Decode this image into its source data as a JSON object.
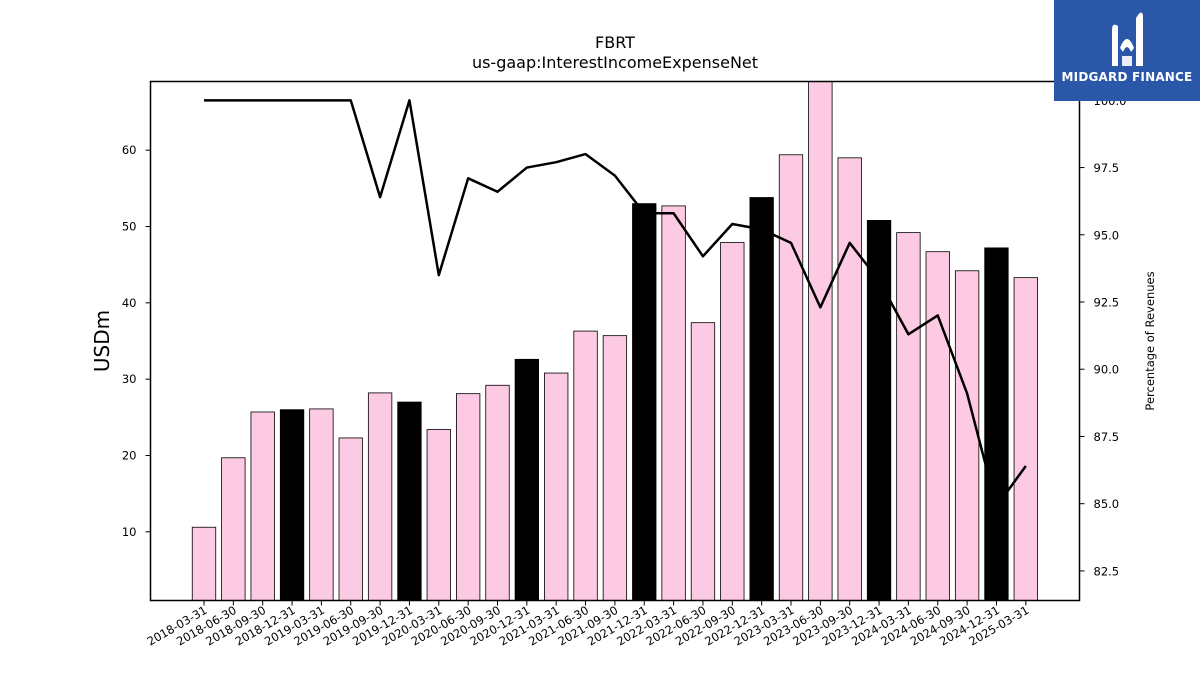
{
  "logo": {
    "text": "MIDGARD FINANCE",
    "bg_color": "#2a57a8"
  },
  "chart_data": {
    "type": "bar",
    "title": "FBRT",
    "subtitle": "us-gaap:InterestIncomeExpenseNet",
    "ylabel": "USDm",
    "y2label": "Percentage of Revenues",
    "ylim": [
      1,
      69
    ],
    "y2lim": [
      81.4,
      100.7
    ],
    "yticks": [
      10,
      20,
      30,
      40,
      50,
      60
    ],
    "y2ticks": [
      82.5,
      85.0,
      87.5,
      90.0,
      92.5,
      95.0,
      97.5,
      100.0
    ],
    "categories": [
      "2018-03-31",
      "2018-06-30",
      "2018-09-30",
      "2018-12-31",
      "2019-03-31",
      "2019-06-30",
      "2019-09-30",
      "2019-12-31",
      "2020-03-31",
      "2020-06-30",
      "2020-09-30",
      "2020-12-31",
      "2021-03-31",
      "2021-06-30",
      "2021-09-30",
      "2021-12-31",
      "2022-03-31",
      "2022-06-30",
      "2022-09-30",
      "2022-12-31",
      "2023-03-31",
      "2023-06-30",
      "2023-09-30",
      "2023-12-31",
      "2024-03-31",
      "2024-06-30",
      "2024-09-30",
      "2024-12-31",
      "2025-03-31"
    ],
    "series": [
      {
        "type": "bar",
        "values": [
          10.6,
          19.7,
          25.7,
          26.0,
          26.1,
          22.3,
          28.2,
          27.0,
          23.4,
          28.1,
          29.2,
          32.6,
          30.8,
          36.3,
          35.7,
          53.0,
          52.7,
          37.4,
          47.9,
          53.8,
          59.4,
          69.0,
          59.0,
          50.8,
          49.2,
          46.7,
          44.2,
          47.2,
          43.3
        ],
        "highlight": [
          false,
          false,
          false,
          true,
          false,
          false,
          false,
          true,
          false,
          false,
          false,
          true,
          false,
          false,
          false,
          true,
          false,
          false,
          false,
          true,
          false,
          false,
          false,
          true,
          false,
          false,
          false,
          true,
          false
        ],
        "colors": {
          "normal": "#fccae2",
          "highlight": "#000000"
        }
      },
      {
        "type": "line",
        "axis": "right",
        "values": [
          100.0,
          100.0,
          100.0,
          100.0,
          100.0,
          100.0,
          96.4,
          100.0,
          93.5,
          97.1,
          96.6,
          97.5,
          97.7,
          98.0,
          97.2,
          95.8,
          95.8,
          94.2,
          95.4,
          95.2,
          94.7,
          92.3,
          94.7,
          93.3,
          91.3,
          92.0,
          89.1,
          84.9,
          86.4
        ],
        "color": "#000000"
      }
    ],
    "grid": false
  }
}
